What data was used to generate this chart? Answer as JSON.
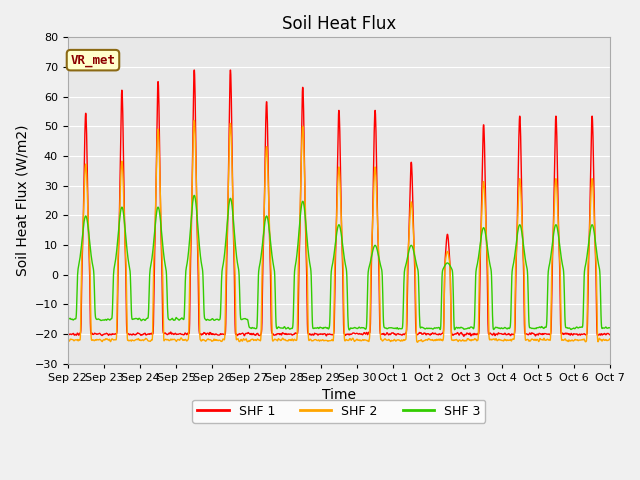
{
  "title": "Soil Heat Flux",
  "ylabel": "Soil Heat Flux (W/m2)",
  "xlabel": "Time",
  "ylim": [
    -30,
    80
  ],
  "yticks": [
    -30,
    -20,
    -10,
    0,
    10,
    20,
    30,
    40,
    50,
    60,
    70,
    80
  ],
  "shf1_color": "#ff0000",
  "shf2_color": "#ffa500",
  "shf3_color": "#33cc00",
  "legend_labels": [
    "SHF 1",
    "SHF 2",
    "SHF 3"
  ],
  "annotation_text": "VR_met",
  "fig_bg_color": "#f0f0f0",
  "plot_bg_color": "#e8e8e8",
  "grid_color": "#ffffff",
  "title_fontsize": 12,
  "axis_label_fontsize": 10,
  "tick_fontsize": 8,
  "legend_fontsize": 9,
  "line_width": 1.0,
  "day_labels": [
    "Sep 22",
    "Sep 23",
    "Sep 24",
    "Sep 25",
    "Sep 26",
    "Sep 27",
    "Sep 28",
    "Sep 29",
    "Sep 30",
    "Oct 1",
    "Oct 2",
    "Oct 3",
    "Oct 4",
    "Oct 5",
    "Oct 6",
    "Oct 7"
  ],
  "shf1_peaks": [
    56,
    64,
    67,
    71,
    71,
    60,
    65,
    57,
    57,
    39,
    14,
    52,
    55,
    55,
    55
  ],
  "shf2_peaks": [
    38,
    39,
    50,
    53,
    52,
    44,
    51,
    37,
    37,
    25,
    8,
    32,
    33,
    33,
    33
  ],
  "shf3_peaks": [
    20,
    23,
    23,
    27,
    26,
    20,
    25,
    17,
    10,
    10,
    4,
    16,
    17,
    17,
    17
  ]
}
